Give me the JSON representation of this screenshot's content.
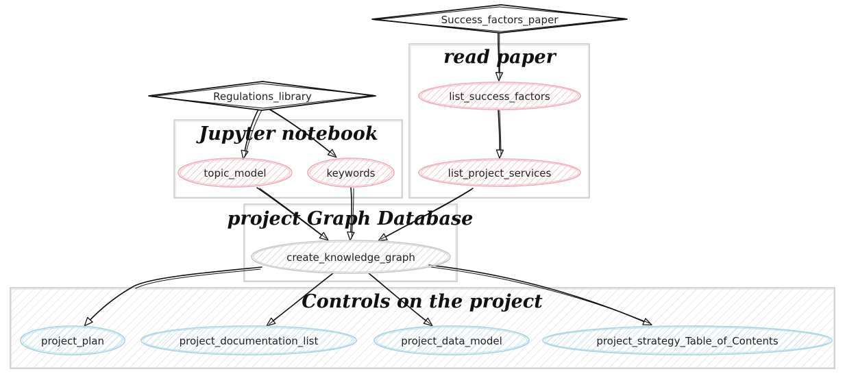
{
  "colors": {
    "data_node_stroke": "#111111",
    "red_node_stroke": "#f0aab8",
    "red_node_fill": "#f9d4dc",
    "grey_node_stroke": "#c8c8c8",
    "grey_node_fill": "#e4e4e4",
    "blue_node_stroke": "#a8d2e0",
    "blue_node_fill": "#d6ecf3",
    "cluster_stroke": "#c9c9c9",
    "controls_fill": "#e6e6e6",
    "edge": "#111111"
  },
  "clusters": {
    "read_paper": "read paper",
    "jupyter": "Jupyter notebook",
    "graph_db": "project Graph Database",
    "controls": "Controls on the project"
  },
  "nodes": {
    "success_factors_paper": "Success_factors_paper",
    "regulations_library": "Regulations_library",
    "list_success_factors": "list_success_factors",
    "list_project_services": "list_project_services",
    "topic_model": "topic_model",
    "keywords": "keywords",
    "create_knowledge_graph": "create_knowledge_graph",
    "project_plan": "project_plan",
    "project_documentation_list": "project_documentation_list",
    "project_data_model": "project_data_model",
    "project_strategy_toc": "project_strategy_Table_of_Contents"
  }
}
